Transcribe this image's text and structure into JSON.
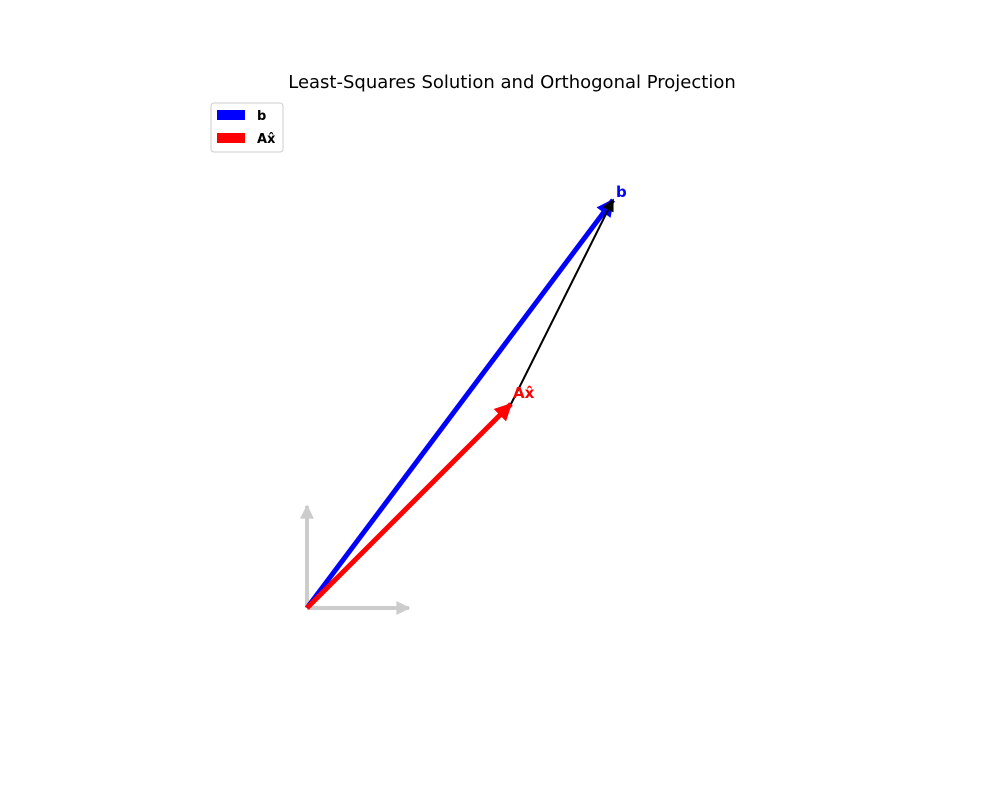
{
  "chart_data": {
    "type": "vector_diagram",
    "title": "Least-Squares Solution and Orthogonal Projection",
    "origin": [
      0,
      0
    ],
    "axis_arrows": [
      {
        "name": "x-axis-arrow",
        "x": 1,
        "y": 0,
        "color": "#cccccc"
      },
      {
        "name": "y-axis-arrow",
        "x": 0,
        "y": 1,
        "color": "#cccccc"
      }
    ],
    "vectors": [
      {
        "name": "b",
        "label": "b",
        "x": 3,
        "y": 4,
        "color": "#0000ff"
      },
      {
        "name": "ax-hat",
        "label": "Ax̂",
        "x": 2,
        "y": 2,
        "color": "#ff0000"
      }
    ],
    "residual": {
      "from": [
        2,
        2
      ],
      "to": [
        3,
        4
      ],
      "color": "#000000"
    },
    "legend": {
      "position": "top-left",
      "entries": [
        {
          "label": "b",
          "color": "#0000ff"
        },
        {
          "label": "Ax̂",
          "color": "#ff0000"
        }
      ]
    }
  }
}
